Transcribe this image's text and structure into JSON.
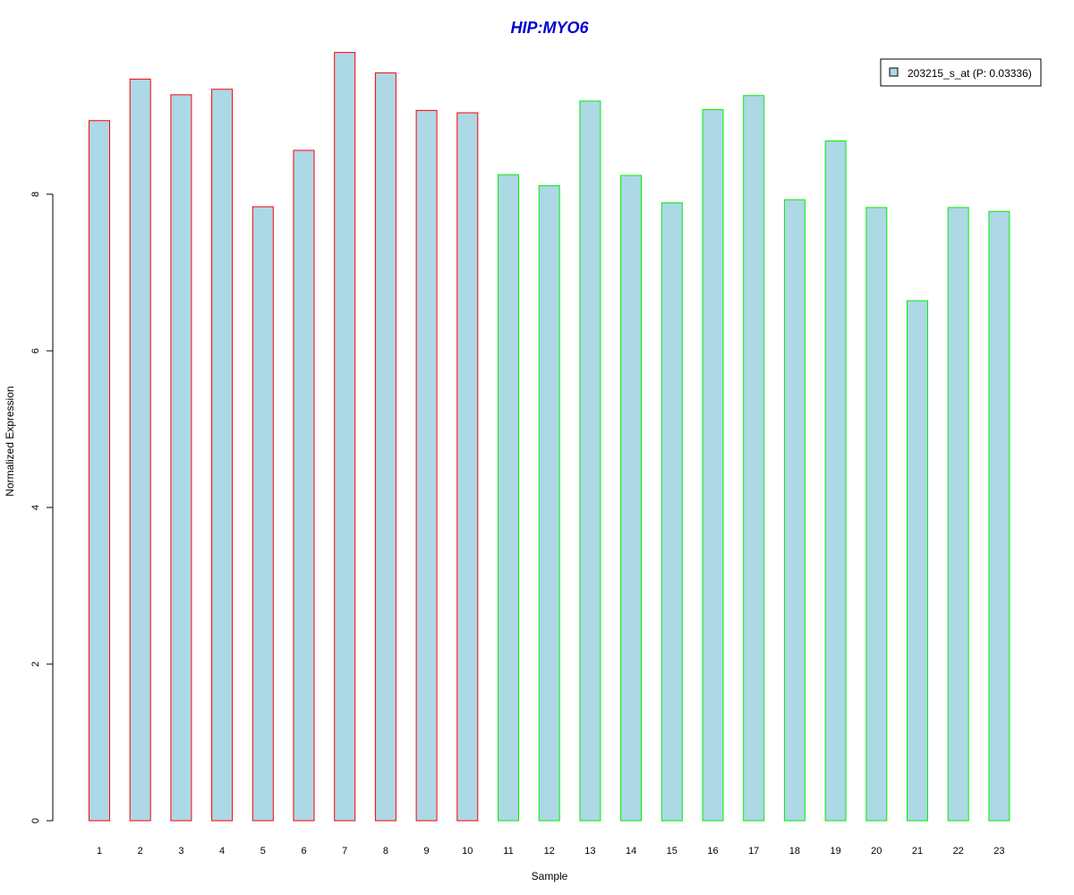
{
  "chart_data": {
    "type": "bar",
    "title": "HIP:MYO6",
    "title_color": "#0000cc",
    "xlabel": "Sample",
    "ylabel": "Normalized Expression",
    "ylim": [
      0,
      9.8
    ],
    "y_ticks": [
      0,
      2,
      4,
      6,
      8
    ],
    "grid": false,
    "legend_position": "top-right",
    "categories": [
      "1",
      "2",
      "3",
      "4",
      "5",
      "6",
      "7",
      "8",
      "9",
      "10",
      "11",
      "12",
      "13",
      "14",
      "15",
      "16",
      "17",
      "18",
      "19",
      "20",
      "21",
      "22",
      "23"
    ],
    "series": [
      {
        "name": "203215_s_at (P: 0.03336)",
        "fill": "#add8e6",
        "values": [
          8.94,
          9.47,
          9.27,
          9.34,
          7.84,
          8.56,
          9.81,
          9.55,
          9.07,
          9.04,
          8.25,
          8.11,
          9.19,
          8.24,
          7.89,
          9.08,
          9.26,
          7.93,
          8.68,
          7.83,
          6.64,
          7.83,
          7.78
        ]
      }
    ],
    "bar_border_colors": [
      "#ff0000",
      "#ff0000",
      "#ff0000",
      "#ff0000",
      "#ff0000",
      "#ff0000",
      "#ff0000",
      "#ff0000",
      "#ff0000",
      "#ff0000",
      "#00ee00",
      "#00ee00",
      "#00ee00",
      "#00ee00",
      "#00ee00",
      "#00ee00",
      "#00ee00",
      "#00ee00",
      "#00ee00",
      "#00ee00",
      "#00ee00",
      "#00ee00",
      "#00ee00"
    ]
  }
}
